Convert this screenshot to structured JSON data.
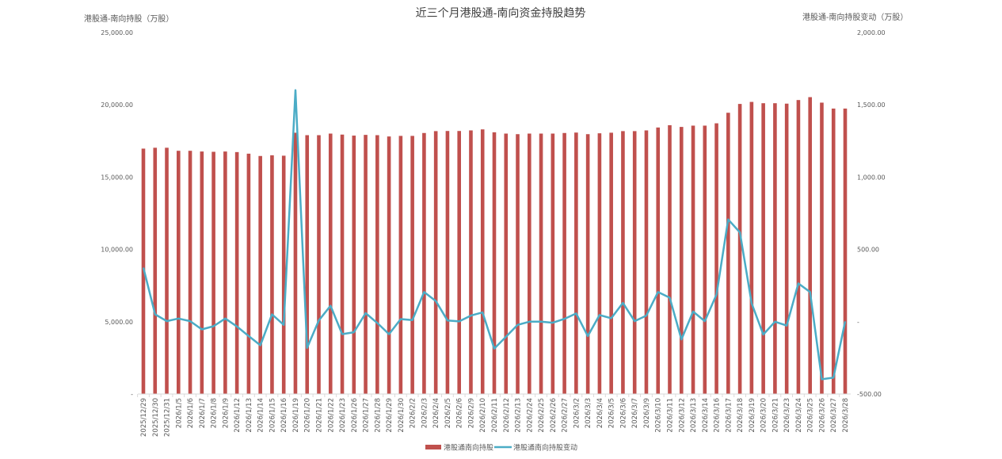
{
  "chart_data": {
    "type": "bar+line",
    "title": "近三个月港股通-南向资金持股趋势",
    "ylabel_left": "港股通-南向持股（万股）",
    "ylabel_right": "港股通-南向持股变动（万股）",
    "ylim_left": [
      0,
      25000
    ],
    "ylim_right": [
      -500,
      2000
    ],
    "left_ticks": [
      "-",
      "5,000.00",
      "10,000.00",
      "15,000.00",
      "20,000.00",
      "25,000.00"
    ],
    "right_ticks": [
      "-500.00",
      "-",
      "500.00",
      "1,000.00",
      "1,500.00",
      "2,000.00"
    ],
    "legend_position": "bottom",
    "categories": [
      "2025/12/29",
      "2025/12/30",
      "2025/12/31",
      "2026/1/5",
      "2026/1/6",
      "2026/1/7",
      "2026/1/8",
      "2026/1/9",
      "2026/1/12",
      "2026/1/13",
      "2026/1/14",
      "2026/1/15",
      "2026/1/16",
      "2026/1/19",
      "2026/1/20",
      "2026/1/21",
      "2026/1/22",
      "2026/1/23",
      "2026/1/26",
      "2026/1/27",
      "2026/1/28",
      "2026/1/29",
      "2026/1/30",
      "2026/2/2",
      "2026/2/3",
      "2026/2/4",
      "2026/2/5",
      "2026/2/6",
      "2026/2/9",
      "2026/2/10",
      "2026/2/11",
      "2026/2/12",
      "2026/2/13",
      "2026/2/24",
      "2026/2/25",
      "2026/2/26",
      "2026/2/27",
      "2026/3/2",
      "2026/3/3",
      "2026/3/4",
      "2026/3/5",
      "2026/3/6",
      "2026/3/7",
      "2026/3/9",
      "2026/3/10",
      "2026/3/11",
      "2026/3/12",
      "2026/3/13",
      "2026/3/14",
      "2026/3/16",
      "2026/3/17",
      "2026/3/18",
      "2026/3/19",
      "2026/3/20",
      "2026/3/21",
      "2026/3/23",
      "2026/3/24",
      "2026/3/25",
      "2026/3/26",
      "2026/3/27",
      "2026/3/28"
    ],
    "series": [
      {
        "name": "港股通南向持股",
        "type": "bar",
        "axis": "left",
        "color": "#c0504d",
        "values": [
          16970,
          17030,
          17030,
          16820,
          16820,
          16770,
          16750,
          16770,
          16730,
          16620,
          16460,
          16510,
          16480,
          18070,
          17900,
          17900,
          18010,
          17940,
          17870,
          17920,
          17900,
          17810,
          17850,
          17850,
          18050,
          18180,
          18190,
          18190,
          18230,
          18300,
          18100,
          18010,
          17970,
          18010,
          18010,
          18010,
          18050,
          18080,
          17970,
          18030,
          18070,
          18180,
          18180,
          18230,
          18430,
          18590,
          18470,
          18560,
          18560,
          18720,
          19450,
          20060,
          20200,
          20110,
          20110,
          20080,
          20330,
          20530,
          20150,
          19740,
          19740
        ]
      },
      {
        "name": "港股通南向持股变动",
        "type": "line",
        "axis": "right",
        "color": "#4bacc6",
        "values": [
          374,
          51,
          4,
          22,
          4,
          -53,
          -31,
          22,
          -33,
          -99,
          -163,
          51,
          -22,
          1601,
          -181,
          9,
          110,
          -86,
          -73,
          59,
          -9,
          -86,
          18,
          11,
          205,
          143,
          9,
          2,
          42,
          64,
          -186,
          -104,
          -22,
          0,
          0,
          -7,
          20,
          57,
          -99,
          46,
          24,
          130,
          4,
          42,
          205,
          166,
          -122,
          70,
          4,
          188,
          707,
          618,
          128,
          -89,
          0,
          -27,
          265,
          205,
          -398,
          -387,
          2
        ]
      }
    ]
  }
}
